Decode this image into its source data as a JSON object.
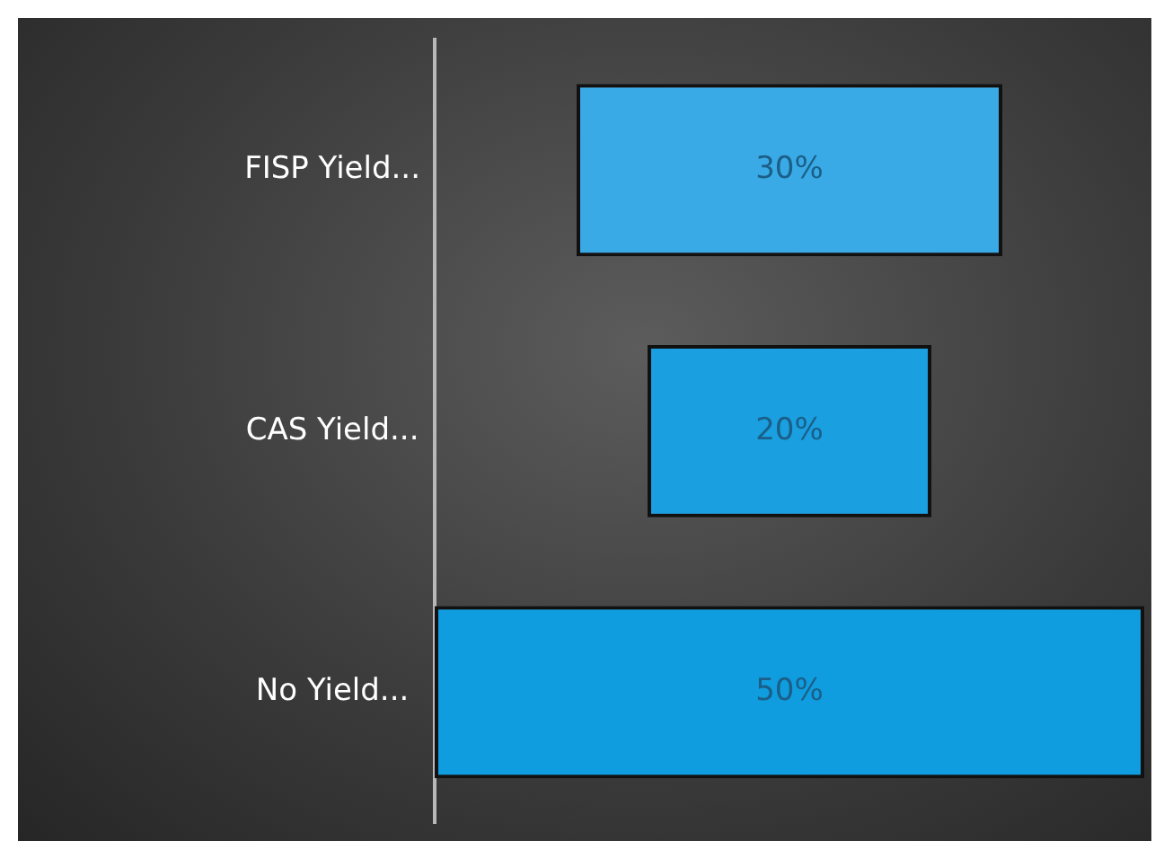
{
  "chart_data": {
    "type": "other",
    "categories": [
      "FISP Yield...",
      "CAS Yield...",
      "No Yield..."
    ],
    "values": [
      30,
      20,
      50
    ],
    "value_labels": [
      "30%",
      "20%",
      "50%"
    ],
    "colors": [
      "#3aaae6",
      "#1a9fe0",
      "#0f9ddf"
    ]
  }
}
